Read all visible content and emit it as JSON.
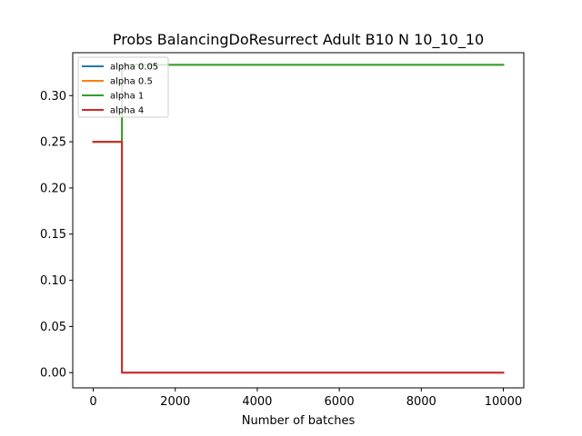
{
  "chart_data": {
    "type": "line",
    "title": "Probs BalancingDoResurrect Adult B10 N 10_10_10",
    "xlabel": "Number of batches",
    "ylabel": "",
    "xlim": [
      -500,
      10500
    ],
    "ylim": [
      -0.0165,
      0.3465
    ],
    "xticks": [
      0,
      2000,
      4000,
      6000,
      8000,
      10000
    ],
    "xtick_labels": [
      "0",
      "2000",
      "4000",
      "6000",
      "8000",
      "10000"
    ],
    "yticks": [
      0.0,
      0.05,
      0.1,
      0.15,
      0.2,
      0.25,
      0.3
    ],
    "ytick_labels": [
      "0.00",
      "0.05",
      "0.10",
      "0.15",
      "0.20",
      "0.25",
      "0.30"
    ],
    "grid": false,
    "legend_position": "top-left",
    "series": [
      {
        "name": "alpha 0.05",
        "color": "#1f77b4",
        "x": [
          0,
          700,
          700,
          10000
        ],
        "y": [
          0.25,
          0.25,
          0.0,
          0.0
        ]
      },
      {
        "name": "alpha 0.5",
        "color": "#ff7f0e",
        "x": [
          0,
          700,
          700,
          10000
        ],
        "y": [
          0.25,
          0.25,
          0.3333,
          0.3333
        ]
      },
      {
        "name": "alpha 1",
        "color": "#2ca02c",
        "x": [
          0,
          700,
          700,
          10000
        ],
        "y": [
          0.25,
          0.25,
          0.3333,
          0.3333
        ]
      },
      {
        "name": "alpha 4",
        "color": "#d62728",
        "x": [
          0,
          700,
          700,
          10000
        ],
        "y": [
          0.25,
          0.25,
          0.0,
          0.0
        ]
      }
    ]
  }
}
